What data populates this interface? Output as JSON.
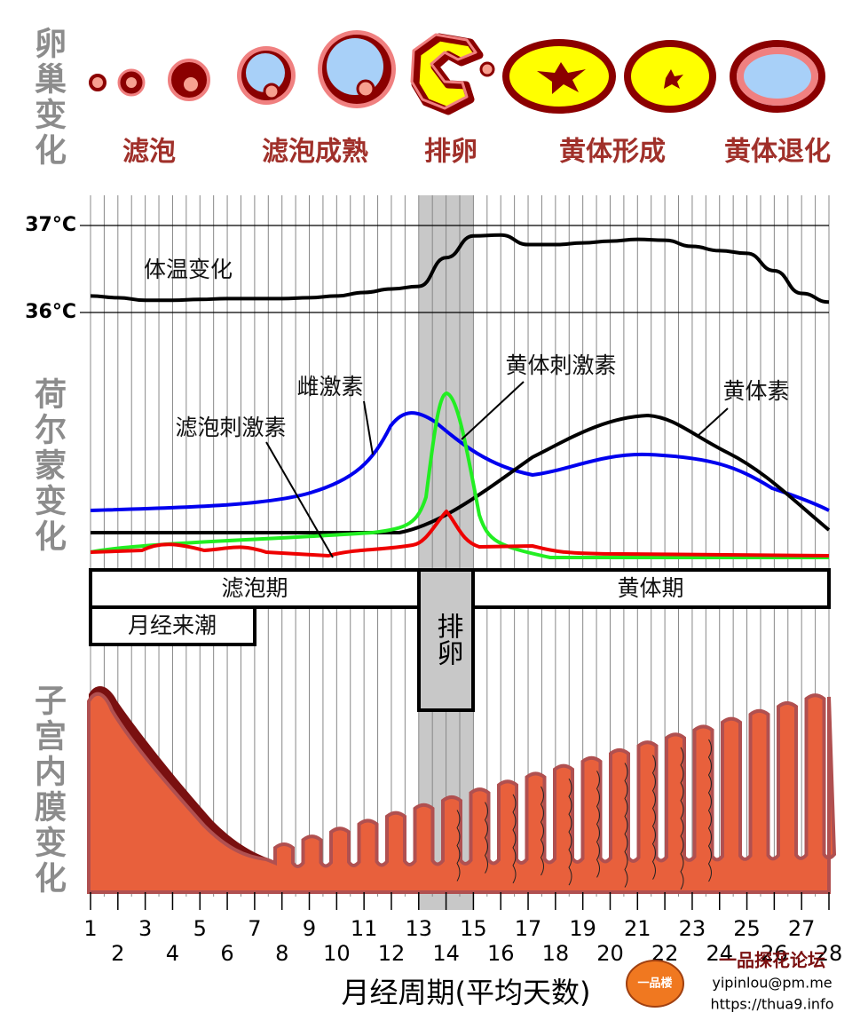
{
  "ovary": {
    "title": "卵巢变化",
    "stages": [
      "滤泡",
      "滤泡成熟",
      "排卵",
      "黄体形成",
      "黄体退化"
    ]
  },
  "temperature": {
    "label": "体温变化",
    "ylim": [
      36,
      37
    ],
    "yticks": [
      {
        "value": 36,
        "label": "36°C"
      },
      {
        "value": 37,
        "label": "37°C"
      }
    ],
    "x": [
      1,
      2,
      3,
      4,
      5,
      6,
      7,
      8,
      9,
      10,
      11,
      12,
      13,
      14,
      15,
      16,
      17,
      18,
      19,
      20,
      21,
      22,
      23,
      24,
      25,
      26,
      27,
      28
    ],
    "values": [
      36.19,
      36.17,
      36.14,
      36.14,
      36.15,
      36.16,
      36.16,
      36.16,
      36.17,
      36.19,
      36.23,
      36.27,
      36.3,
      36.63,
      36.88,
      36.89,
      36.78,
      36.78,
      36.8,
      36.82,
      36.84,
      36.83,
      36.76,
      36.71,
      36.68,
      36.48,
      36.22,
      36.12
    ]
  },
  "hormones": {
    "title": "荷尔蒙变化",
    "labels": [
      "雌激素",
      "滤泡刺激素",
      "黄体刺激素",
      "黄体素"
    ]
  },
  "phases": {
    "follicular": "滤泡期",
    "luteal": "黄体期",
    "menstruation": "月经来潮",
    "ovulation": "排卵"
  },
  "endometrium": {
    "title": "子宫内膜变化"
  },
  "x_axis": {
    "ticks": [
      1,
      2,
      3,
      4,
      5,
      6,
      7,
      8,
      9,
      10,
      11,
      12,
      13,
      14,
      15,
      16,
      17,
      18,
      19,
      20,
      21,
      22,
      23,
      24,
      25,
      26,
      27,
      28
    ],
    "label": "月经周期(平均天数)"
  },
  "watermark": {
    "logo": "一品楼",
    "site": "一品探花论坛",
    "email": "yipinlou@pm.me",
    "url": "https://thua9.info"
  }
}
